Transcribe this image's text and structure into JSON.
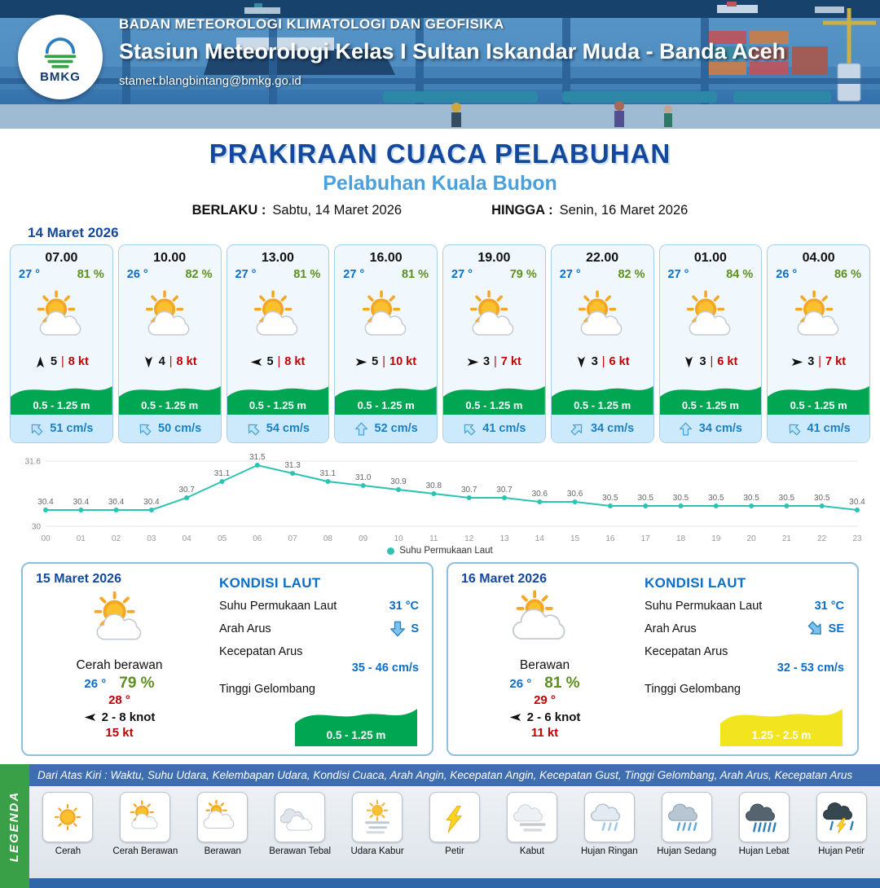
{
  "header": {
    "agency": "BADAN METEOROLOGI KLIMATOLOGI DAN GEOFISIKA",
    "station": "Stasiun Meteorologi Kelas I Sultan Iskandar Muda - Banda Aceh",
    "email": "stamet.blangbintang@bmkg.go.id",
    "logo_word": "BMKG"
  },
  "title": {
    "main": "PRAKIRAAN CUACA PELABUHAN",
    "subtitle": "Pelabuhan Kuala Bubon",
    "berlaku_label": "BERLAKU :",
    "berlaku_value": "Sabtu, 14 Maret 2026",
    "hingga_label": "HINGGA :",
    "hingga_value": "Senin, 16 Maret 2026"
  },
  "forecast": {
    "date": "14 Maret 2026",
    "cards": [
      {
        "time": "07.00",
        "temp": "27 °",
        "humidity": "81 %",
        "icon": "cerah-berawan",
        "wind_dir_deg": 0,
        "wind_speed": "5",
        "gust": "8 kt",
        "wave": "0.5 - 1.25 m",
        "current_dir_deg": -45,
        "current": "51 cm/s"
      },
      {
        "time": "10.00",
        "temp": "26 °",
        "humidity": "82 %",
        "icon": "cerah-berawan",
        "wind_dir_deg": 180,
        "wind_speed": "4",
        "gust": "8 kt",
        "wave": "0.5 - 1.25 m",
        "current_dir_deg": -45,
        "current": "50 cm/s"
      },
      {
        "time": "13.00",
        "temp": "27 °",
        "humidity": "81 %",
        "icon": "cerah-berawan",
        "wind_dir_deg": 270,
        "wind_speed": "5",
        "gust": "8 kt",
        "wave": "0.5 - 1.25 m",
        "current_dir_deg": -45,
        "current": "54 cm/s"
      },
      {
        "time": "16.00",
        "temp": "27 °",
        "humidity": "81 %",
        "icon": "cerah-berawan",
        "wind_dir_deg": 90,
        "wind_speed": "5",
        "gust": "10 kt",
        "wave": "0.5 - 1.25 m",
        "current_dir_deg": 0,
        "current": "52 cm/s"
      },
      {
        "time": "19.00",
        "temp": "27 °",
        "humidity": "79 %",
        "icon": "cerah-berawan",
        "wind_dir_deg": 90,
        "wind_speed": "3",
        "gust": "7 kt",
        "wave": "0.5 - 1.25 m",
        "current_dir_deg": -45,
        "current": "41 cm/s"
      },
      {
        "time": "22.00",
        "temp": "27 °",
        "humidity": "82 %",
        "icon": "cerah-berawan",
        "wind_dir_deg": 180,
        "wind_speed": "3",
        "gust": "6 kt",
        "wave": "0.5 - 1.25 m",
        "current_dir_deg": 45,
        "current": "34 cm/s"
      },
      {
        "time": "01.00",
        "temp": "27 °",
        "humidity": "84 %",
        "icon": "cerah-berawan",
        "wind_dir_deg": 180,
        "wind_speed": "3",
        "gust": "6 kt",
        "wave": "0.5 - 1.25 m",
        "current_dir_deg": 0,
        "current": "34 cm/s"
      },
      {
        "time": "04.00",
        "temp": "26 °",
        "humidity": "86 %",
        "icon": "cerah-berawan",
        "wind_dir_deg": 90,
        "wind_speed": "3",
        "gust": "7 kt",
        "wave": "0.5 - 1.25 m",
        "current_dir_deg": -45,
        "current": "41 cm/s"
      }
    ]
  },
  "chart_data": {
    "type": "line",
    "title": "",
    "x": [
      "00",
      "01",
      "02",
      "03",
      "04",
      "05",
      "06",
      "07",
      "08",
      "09",
      "10",
      "11",
      "12",
      "13",
      "14",
      "15",
      "16",
      "17",
      "18",
      "19",
      "20",
      "21",
      "22",
      "23"
    ],
    "series": [
      {
        "name": "Suhu Permukaan Laut",
        "values": [
          30.4,
          30.4,
          30.4,
          30.4,
          30.7,
          31.1,
          31.5,
          31.3,
          31.1,
          31.0,
          30.9,
          30.8,
          30.7,
          30.7,
          30.6,
          30.6,
          30.5,
          30.5,
          30.5,
          30.5,
          30.5,
          30.5,
          30.5,
          30.4
        ]
      }
    ],
    "ylim": [
      30,
      31.6
    ],
    "yticks": [
      30,
      31.6
    ],
    "line_color": "#2cc3b4",
    "grid": true,
    "legend_position": "bottom",
    "legend_label": "Suhu Permukaan Laut"
  },
  "days": {
    "labels": {
      "kondisi": "KONDISI LAUT",
      "sst": "Suhu Permukaan Laut",
      "arah": "Arah Arus",
      "kecepatan": "Kecepatan Arus",
      "gelombang": "Tinggi Gelombang"
    },
    "items": [
      {
        "date": "15 Maret 2026",
        "icon": "cerah-berawan",
        "condition": "Cerah berawan",
        "temp_min": "26 °",
        "temp_max": "28 °",
        "humidity": "79 %",
        "wind_dir_deg": 270,
        "wind_range": "2 - 8 knot",
        "gust": "15 kt",
        "sst": "31 °C",
        "current_dir": "S",
        "current_dir_deg": 180,
        "current_speed": "35 - 46 cm/s",
        "wave": "0.5 - 1.25 m",
        "wave_color": "#00a651",
        "wave_text_color": "#ffffff"
      },
      {
        "date": "16 Maret 2026",
        "icon": "berawan",
        "condition": "Berawan",
        "temp_min": "26 °",
        "temp_max": "29 °",
        "humidity": "81 %",
        "wind_dir_deg": 270,
        "wind_range": "2 - 6 knot",
        "gust": "11 kt",
        "sst": "31 °C",
        "current_dir": "SE",
        "current_dir_deg": 135,
        "current_speed": "32 - 53 cm/s",
        "wave": "1.25 - 2.5 m",
        "wave_color": "#f2e41f",
        "wave_text_color": "#ffffff"
      }
    ]
  },
  "legend": {
    "strip": "LEGENDA",
    "note": "Dari Atas Kiri : Waktu, Suhu Udara, Kelembapan Udara, Kondisi Cuaca, Arah Angin, Kecepatan Angin, Kecepatan Gust, Tinggi Gelombang, Arah Arus, Kecepatan Arus",
    "items": [
      {
        "label": "Cerah",
        "icon": "cerah"
      },
      {
        "label": "Cerah Berawan",
        "icon": "cerah-berawan"
      },
      {
        "label": "Berawan",
        "icon": "berawan"
      },
      {
        "label": "Berawan Tebal",
        "icon": "berawan-tebal"
      },
      {
        "label": "Udara Kabur",
        "icon": "udara-kabur"
      },
      {
        "label": "Petir",
        "icon": "petir"
      },
      {
        "label": "Kabut",
        "icon": "kabut"
      },
      {
        "label": "Hujan Ringan",
        "icon": "hujan-ringan"
      },
      {
        "label": "Hujan Sedang",
        "icon": "hujan-sedang"
      },
      {
        "label": "Hujan Lebat",
        "icon": "hujan-lebat"
      },
      {
        "label": "Hujan Petir",
        "icon": "hujan-petir"
      }
    ]
  }
}
